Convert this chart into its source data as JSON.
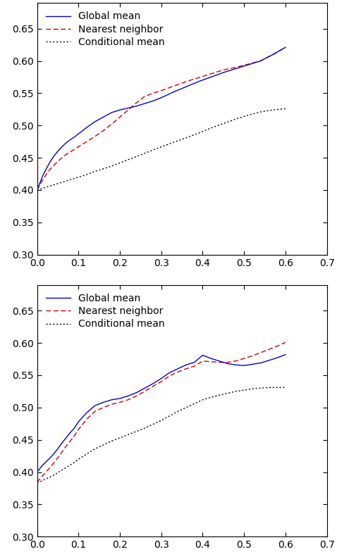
{
  "plot1": {
    "x_global": [
      0.0,
      0.005,
      0.01,
      0.015,
      0.02,
      0.025,
      0.03,
      0.035,
      0.04,
      0.05,
      0.06,
      0.07,
      0.08,
      0.09,
      0.1,
      0.12,
      0.14,
      0.16,
      0.18,
      0.2,
      0.22,
      0.24,
      0.26,
      0.28,
      0.3,
      0.33,
      0.36,
      0.39,
      0.42,
      0.45,
      0.48,
      0.51,
      0.54,
      0.57,
      0.6
    ],
    "y_global": [
      0.4,
      0.408,
      0.416,
      0.424,
      0.43,
      0.436,
      0.442,
      0.447,
      0.452,
      0.46,
      0.467,
      0.473,
      0.478,
      0.482,
      0.487,
      0.497,
      0.506,
      0.513,
      0.52,
      0.524,
      0.527,
      0.53,
      0.534,
      0.538,
      0.543,
      0.552,
      0.56,
      0.568,
      0.575,
      0.582,
      0.588,
      0.594,
      0.6,
      0.61,
      0.621
    ],
    "x_nn": [
      0.0,
      0.01,
      0.02,
      0.03,
      0.04,
      0.05,
      0.06,
      0.07,
      0.08,
      0.09,
      0.1,
      0.12,
      0.14,
      0.16,
      0.18,
      0.2,
      0.22,
      0.24,
      0.26,
      0.28,
      0.3,
      0.33,
      0.36,
      0.39,
      0.42,
      0.45,
      0.48,
      0.51,
      0.54,
      0.57,
      0.6
    ],
    "y_nn": [
      0.4,
      0.412,
      0.422,
      0.431,
      0.438,
      0.444,
      0.45,
      0.455,
      0.459,
      0.463,
      0.467,
      0.475,
      0.483,
      0.492,
      0.502,
      0.513,
      0.524,
      0.535,
      0.545,
      0.55,
      0.554,
      0.561,
      0.568,
      0.574,
      0.58,
      0.586,
      0.59,
      0.595,
      0.6,
      0.61,
      0.621
    ],
    "x_cond": [
      0.0,
      0.01,
      0.02,
      0.03,
      0.04,
      0.05,
      0.06,
      0.07,
      0.08,
      0.09,
      0.1,
      0.12,
      0.14,
      0.16,
      0.18,
      0.2,
      0.22,
      0.24,
      0.26,
      0.28,
      0.3,
      0.33,
      0.36,
      0.39,
      0.42,
      0.45,
      0.48,
      0.51,
      0.54,
      0.57,
      0.6
    ],
    "y_cond": [
      0.4,
      0.402,
      0.404,
      0.406,
      0.408,
      0.41,
      0.412,
      0.414,
      0.416,
      0.418,
      0.42,
      0.424,
      0.429,
      0.433,
      0.437,
      0.442,
      0.447,
      0.452,
      0.457,
      0.462,
      0.467,
      0.474,
      0.481,
      0.488,
      0.496,
      0.503,
      0.51,
      0.516,
      0.521,
      0.524,
      0.526
    ],
    "xlim": [
      0.0,
      0.7
    ],
    "ylim": [
      0.3,
      0.69
    ],
    "yticks": [
      0.3,
      0.35,
      0.4,
      0.45,
      0.5,
      0.55,
      0.6,
      0.65
    ],
    "xticks": [
      0.0,
      0.1,
      0.2,
      0.3,
      0.4,
      0.5,
      0.6,
      0.7
    ]
  },
  "plot2": {
    "x_global": [
      0.0,
      0.01,
      0.02,
      0.03,
      0.04,
      0.05,
      0.06,
      0.07,
      0.08,
      0.09,
      0.1,
      0.12,
      0.14,
      0.16,
      0.18,
      0.2,
      0.22,
      0.24,
      0.26,
      0.28,
      0.3,
      0.32,
      0.34,
      0.36,
      0.38,
      0.4,
      0.42,
      0.44,
      0.46,
      0.48,
      0.5,
      0.52,
      0.54,
      0.56,
      0.58,
      0.6
    ],
    "y_global": [
      0.4,
      0.408,
      0.415,
      0.421,
      0.428,
      0.436,
      0.445,
      0.453,
      0.461,
      0.468,
      0.478,
      0.492,
      0.503,
      0.508,
      0.512,
      0.514,
      0.518,
      0.523,
      0.53,
      0.537,
      0.545,
      0.554,
      0.56,
      0.566,
      0.57,
      0.581,
      0.576,
      0.572,
      0.568,
      0.566,
      0.565,
      0.567,
      0.569,
      0.573,
      0.577,
      0.582
    ],
    "x_nn": [
      0.0,
      0.01,
      0.02,
      0.03,
      0.04,
      0.05,
      0.06,
      0.07,
      0.08,
      0.09,
      0.1,
      0.12,
      0.14,
      0.16,
      0.18,
      0.2,
      0.22,
      0.24,
      0.26,
      0.28,
      0.3,
      0.32,
      0.34,
      0.36,
      0.38,
      0.4,
      0.42,
      0.44,
      0.46,
      0.48,
      0.5,
      0.52,
      0.54,
      0.56,
      0.58,
      0.6
    ],
    "y_nn": [
      0.384,
      0.392,
      0.399,
      0.406,
      0.414,
      0.422,
      0.431,
      0.44,
      0.448,
      0.456,
      0.466,
      0.482,
      0.494,
      0.5,
      0.505,
      0.508,
      0.512,
      0.518,
      0.525,
      0.533,
      0.54,
      0.549,
      0.555,
      0.56,
      0.564,
      0.572,
      0.571,
      0.57,
      0.57,
      0.572,
      0.576,
      0.58,
      0.585,
      0.59,
      0.595,
      0.601
    ],
    "x_cond": [
      0.0,
      0.01,
      0.02,
      0.03,
      0.04,
      0.05,
      0.06,
      0.07,
      0.08,
      0.09,
      0.1,
      0.12,
      0.14,
      0.16,
      0.18,
      0.2,
      0.22,
      0.24,
      0.26,
      0.28,
      0.3,
      0.32,
      0.34,
      0.36,
      0.38,
      0.4,
      0.42,
      0.44,
      0.46,
      0.48,
      0.5,
      0.52,
      0.54,
      0.56,
      0.58,
      0.6
    ],
    "y_cond": [
      0.384,
      0.386,
      0.389,
      0.392,
      0.395,
      0.399,
      0.403,
      0.407,
      0.411,
      0.415,
      0.42,
      0.428,
      0.436,
      0.442,
      0.448,
      0.453,
      0.458,
      0.463,
      0.468,
      0.474,
      0.48,
      0.487,
      0.494,
      0.5,
      0.506,
      0.512,
      0.516,
      0.519,
      0.522,
      0.525,
      0.527,
      0.529,
      0.53,
      0.531,
      0.531,
      0.531
    ],
    "xlim": [
      0.0,
      0.7
    ],
    "ylim": [
      0.3,
      0.69
    ],
    "yticks": [
      0.3,
      0.35,
      0.4,
      0.45,
      0.5,
      0.55,
      0.6,
      0.65
    ],
    "xticks": [
      0.0,
      0.1,
      0.2,
      0.3,
      0.4,
      0.5,
      0.6,
      0.7
    ]
  },
  "color_global": "#0000cc",
  "color_nn": "#cc0000",
  "color_cond": "#000000",
  "lw": 1.0,
  "legend_fontsize": 10,
  "tick_fontsize": 10,
  "legend_loc": "upper left"
}
